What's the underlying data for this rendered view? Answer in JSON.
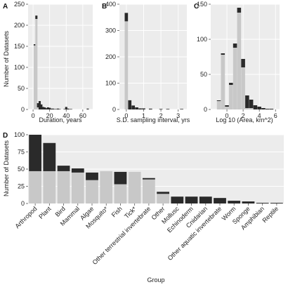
{
  "chart_data": [
    {
      "panel_label": "A",
      "type": "bar",
      "stacked": true,
      "ylabel": "Number of Datasets",
      "xlabel": "Duration, years",
      "xlim": [
        -6,
        72
      ],
      "ylim": [
        0,
        250
      ],
      "x_ticks": [
        0,
        20,
        40,
        60
      ],
      "y_ticks": [
        0,
        50,
        100,
        150,
        200,
        250
      ],
      "grid": true,
      "bin_width": 2.6,
      "x": [
        2,
        4,
        6,
        8,
        10,
        12,
        14,
        16,
        18,
        20,
        22,
        24,
        26,
        28,
        30,
        32,
        38,
        40,
        42,
        44,
        46,
        66
      ],
      "series": [
        {
          "values": [
            152,
            215,
            5,
            0,
            0,
            0,
            0,
            0,
            0,
            0,
            0,
            0,
            0,
            0,
            0,
            0,
            0,
            0,
            0,
            0,
            0,
            0
          ]
        },
        {
          "values": [
            3,
            8,
            10,
            20,
            12,
            6,
            5,
            3,
            5,
            4,
            2,
            2,
            1,
            1,
            2,
            1,
            1,
            6,
            2,
            1,
            1,
            2
          ]
        }
      ]
    },
    {
      "panel_label": "B",
      "type": "bar",
      "stacked": true,
      "ylabel": "",
      "xlabel": "S.D. sampling interval, yrs",
      "xlim": [
        -0.4,
        3.5
      ],
      "ylim": [
        0,
        400
      ],
      "x_ticks": [
        0,
        1,
        2,
        3
      ],
      "y_ticks": [
        0,
        100,
        200,
        300,
        400
      ],
      "grid": true,
      "bin_width": 0.19,
      "x": [
        0.0,
        0.2,
        0.4,
        0.6,
        0.8,
        1.0,
        1.4,
        2.0,
        2.4,
        3.2
      ],
      "series": [
        {
          "values": [
            335,
            0,
            0,
            0,
            0,
            0,
            0,
            0,
            0,
            0
          ]
        },
        {
          "values": [
            32,
            35,
            15,
            8,
            4,
            4,
            3,
            2,
            2,
            2
          ]
        }
      ]
    },
    {
      "panel_label": "C",
      "type": "bar",
      "stacked": true,
      "ylabel": "",
      "xlabel": "Log 10 (Area, km^2)",
      "xlim": [
        -2,
        6.5
      ],
      "ylim": [
        0,
        150
      ],
      "x_ticks": [
        0,
        2,
        4,
        6
      ],
      "y_ticks": [
        0,
        50,
        100,
        150
      ],
      "grid": true,
      "bin_width": 0.48,
      "x": [
        -1.0,
        -0.5,
        0.0,
        0.5,
        1.0,
        1.5,
        2.0,
        2.5,
        3.0,
        3.5,
        4.0,
        4.5,
        5.0,
        5.5
      ],
      "series": [
        {
          "values": [
            12,
            78,
            4,
            35,
            88,
            138,
            60,
            2,
            2,
            0,
            0,
            0,
            0,
            0
          ]
        },
        {
          "values": [
            1,
            2,
            2,
            3,
            6,
            7,
            12,
            18,
            12,
            6,
            4,
            2,
            1,
            1
          ]
        }
      ]
    },
    {
      "panel_label": "D",
      "type": "bar",
      "stacked": true,
      "ylabel": "Number of Datasets",
      "xlabel": "Group",
      "ylim": [
        0,
        100
      ],
      "y_ticks": [
        0,
        25,
        50,
        75,
        100
      ],
      "grid": true,
      "categories": [
        "Arthropod",
        "Plant",
        "Bird",
        "Mammal",
        "Algae",
        "Mosquito*",
        "Fish",
        "Tick*",
        "Other terrestrial invertebrate",
        "Other",
        "Mollusc",
        "Echinoderm",
        "Cnidarian",
        "Other aquatic invertebrate",
        "Worm",
        "Sponge",
        "Amphibian",
        "Reptile"
      ],
      "series": [
        {
          "values": [
            47,
            47,
            47,
            45,
            34,
            47,
            28,
            46,
            35,
            14,
            0,
            0,
            0,
            0,
            0,
            0,
            0,
            0
          ]
        },
        {
          "values": [
            53,
            41,
            8,
            6,
            11,
            0,
            18,
            0,
            2,
            3,
            10,
            10,
            10,
            8,
            4,
            3,
            1,
            1
          ]
        }
      ]
    }
  ],
  "colors": {
    "light_series": "#c8c8c8",
    "dark_series": "#2a2a2a",
    "panel_background": "#ececec",
    "grid": "#ffffff"
  }
}
